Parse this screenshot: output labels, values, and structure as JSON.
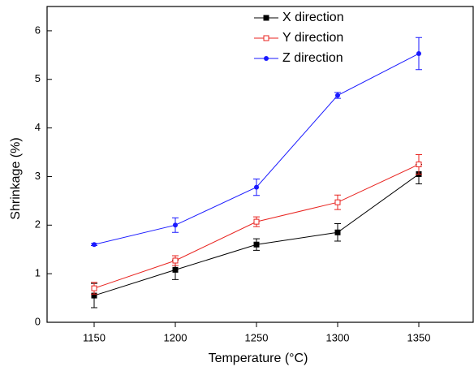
{
  "chart_data": {
    "type": "line",
    "x_label": "Temperature (°C)",
    "y_label": "Shrinkage (%)",
    "x": [
      1150,
      1200,
      1250,
      1300,
      1350
    ],
    "series": [
      {
        "name": "X direction",
        "color": "#000000",
        "marker": "square",
        "values": [
          0.55,
          1.08,
          1.6,
          1.85,
          3.05
        ],
        "errors": [
          0.25,
          0.2,
          0.12,
          0.18,
          0.2
        ]
      },
      {
        "name": "Y direction",
        "color": "#e8231f",
        "marker": "open-square",
        "values": [
          0.7,
          1.27,
          2.07,
          2.47,
          3.25
        ],
        "errors": [
          0.12,
          0.1,
          0.1,
          0.15,
          0.2
        ]
      },
      {
        "name": "Z direction",
        "color": "#1a1aff",
        "marker": "circle",
        "values": [
          1.6,
          2.0,
          2.78,
          4.67,
          5.53
        ],
        "errors": [
          0.02,
          0.15,
          0.17,
          0.06,
          0.33
        ]
      }
    ],
    "xlim": [
      1121,
      1384
    ],
    "ylim": [
      0,
      6.5
    ],
    "xticks": [
      1150,
      1200,
      1250,
      1300,
      1350
    ],
    "yticks": [
      0,
      1,
      2,
      3,
      4,
      5,
      6
    ],
    "legend": "upper-center"
  }
}
